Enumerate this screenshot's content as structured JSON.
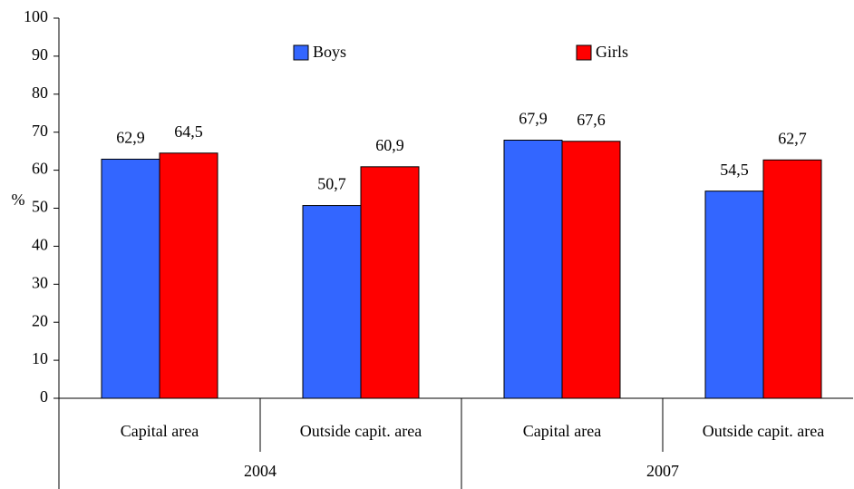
{
  "chart_data": {
    "type": "bar",
    "y_label": "%",
    "categories": [
      "Capital area",
      "Outside capit. area",
      "Capital area",
      "Outside capit. area"
    ],
    "groups": [
      "2004",
      "2007"
    ],
    "series": [
      {
        "name": "Boys",
        "color": "#3366ff",
        "values": [
          62.9,
          50.7,
          67.9,
          54.5
        ],
        "value_labels": [
          "62,9",
          "50,7",
          "67,9",
          "54,5"
        ]
      },
      {
        "name": "Girls",
        "color": "#ff0000",
        "values": [
          64.5,
          60.9,
          67.6,
          62.7
        ],
        "value_labels": [
          "64,5",
          "60,9",
          "67,6",
          "62,7"
        ]
      }
    ],
    "ylim": [
      0,
      100
    ],
    "yticks": [
      0,
      10,
      20,
      30,
      40,
      50,
      60,
      70,
      80,
      90,
      100
    ]
  }
}
